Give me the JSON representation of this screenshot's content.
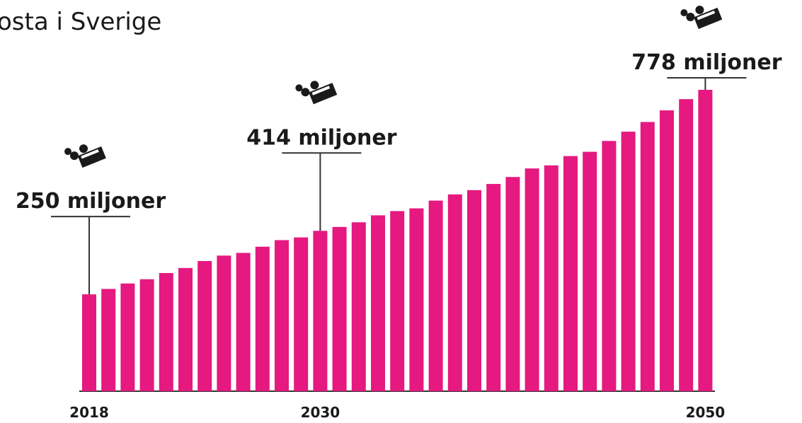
{
  "chart_data": {
    "type": "bar",
    "title": "osta i Sverige",
    "categories": [
      "2018",
      null,
      null,
      null,
      null,
      null,
      null,
      null,
      null,
      null,
      null,
      null,
      "2030",
      null,
      null,
      null,
      null,
      null,
      null,
      null,
      null,
      null,
      null,
      null,
      null,
      null,
      null,
      null,
      null,
      null,
      null,
      null,
      "2050"
    ],
    "values": [
      250,
      264,
      278,
      289,
      305,
      318,
      336,
      350,
      357,
      373,
      390,
      397,
      414,
      424,
      436,
      454,
      465,
      472,
      492,
      508,
      519,
      535,
      553,
      575,
      583,
      607,
      618,
      646,
      670,
      695,
      725,
      754,
      778
    ],
    "value_labels": [
      "250 miljoner",
      null,
      null,
      null,
      null,
      null,
      null,
      null,
      null,
      null,
      null,
      null,
      "414 miljoner",
      null,
      null,
      null,
      null,
      null,
      null,
      null,
      null,
      null,
      null,
      null,
      null,
      null,
      null,
      null,
      null,
      null,
      null,
      null,
      "778 miljoner"
    ],
    "color": "#e5197f"
  }
}
